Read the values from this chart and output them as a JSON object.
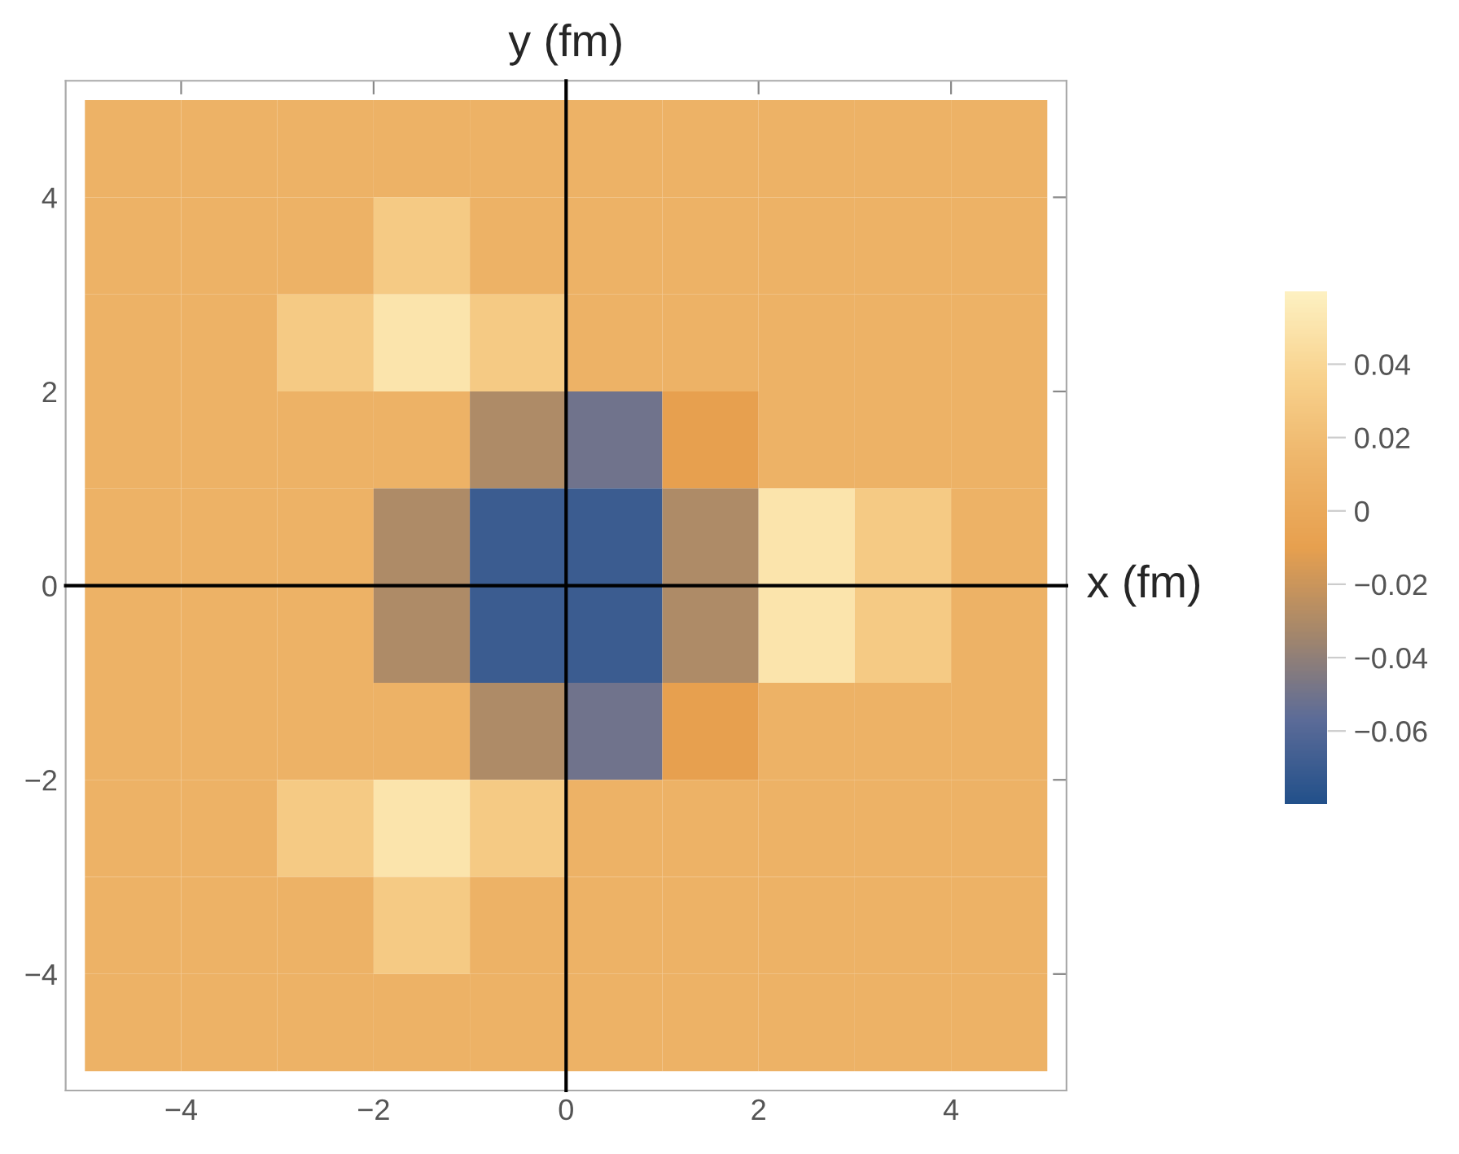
{
  "chart_data": {
    "type": "heatmap",
    "xlabel": "x (fm)",
    "ylabel": "y (fm)",
    "x": [
      -4.5,
      -3.5,
      -2.5,
      -1.5,
      -0.5,
      0.5,
      1.5,
      2.5,
      3.5,
      4.5
    ],
    "y": [
      4.5,
      3.5,
      2.5,
      1.5,
      0.5,
      -0.5,
      -1.5,
      -2.5,
      -3.5,
      -4.5
    ],
    "cells": [
      [
        0.01,
        0.01,
        0.01,
        0.01,
        0.01,
        0.01,
        0.01,
        0.01,
        0.01,
        0.01
      ],
      [
        0.01,
        0.01,
        0.01,
        0.03,
        0.01,
        0.01,
        0.01,
        0.01,
        0.01,
        0.01
      ],
      [
        0.01,
        0.01,
        0.03,
        0.05,
        0.03,
        0.01,
        0.01,
        0.01,
        0.01,
        0.01
      ],
      [
        0.01,
        0.01,
        0.01,
        0.01,
        -0.03,
        -0.05,
        -0.01,
        0.01,
        0.01,
        0.01
      ],
      [
        0.01,
        0.01,
        0.01,
        -0.03,
        -0.07,
        -0.07,
        -0.03,
        0.05,
        0.03,
        0.01
      ],
      [
        0.01,
        0.01,
        0.01,
        -0.03,
        -0.07,
        -0.07,
        -0.03,
        0.05,
        0.03,
        0.01
      ],
      [
        0.01,
        0.01,
        0.01,
        0.01,
        -0.03,
        -0.05,
        -0.01,
        0.01,
        0.01,
        0.01
      ],
      [
        0.01,
        0.01,
        0.03,
        0.05,
        0.03,
        0.01,
        0.01,
        0.01,
        0.01,
        0.01
      ],
      [
        0.01,
        0.01,
        0.01,
        0.03,
        0.01,
        0.01,
        0.01,
        0.01,
        0.01,
        0.01
      ],
      [
        0.01,
        0.01,
        0.01,
        0.01,
        0.01,
        0.01,
        0.01,
        0.01,
        0.01,
        0.01
      ]
    ],
    "clim": [
      -0.08,
      0.06
    ],
    "cticks": [
      -0.06,
      -0.04,
      -0.02,
      0,
      0.02,
      0.04
    ],
    "xlim": [
      -5.2,
      5.2
    ],
    "ylim": [
      -5.2,
      5.2
    ],
    "xticks": [
      -4,
      -2,
      0,
      2,
      4
    ],
    "yticks": [
      -4,
      -2,
      0,
      2,
      4
    ]
  }
}
